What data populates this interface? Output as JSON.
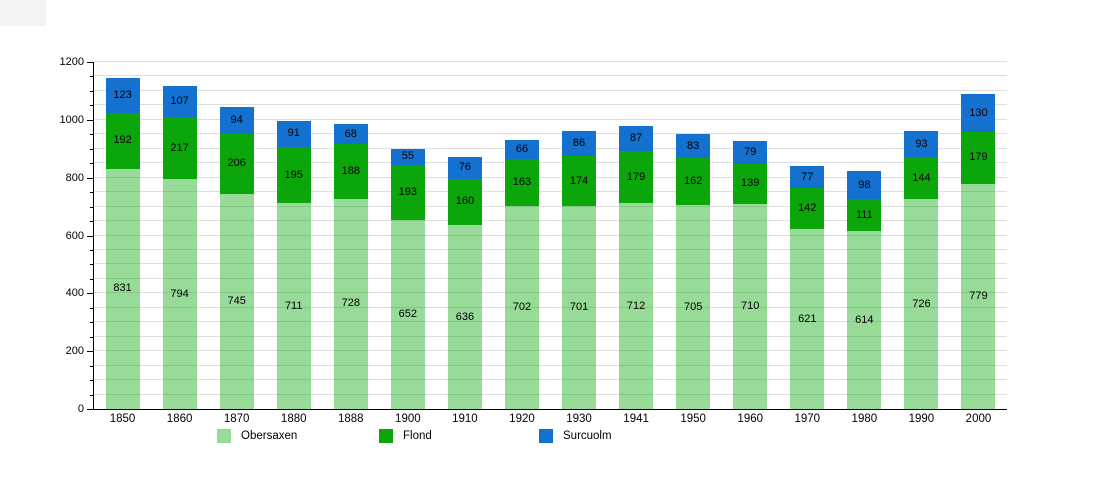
{
  "chart_data": {
    "type": "bar",
    "stacked": true,
    "title": "",
    "xlabel": "",
    "ylabel": "",
    "ylim": [
      0,
      1200
    ],
    "yticks": [
      0,
      200,
      400,
      600,
      800,
      1000,
      1200
    ],
    "grid_step": 50,
    "grid_on": true,
    "legend_position": "bottom",
    "axis_color": "#000000",
    "grid_color": "#dedede",
    "categories": [
      "1850",
      "1860",
      "1870",
      "1880",
      "1888",
      "1900",
      "1910",
      "1920",
      "1930",
      "1941",
      "1950",
      "1960",
      "1970",
      "1980",
      "1990",
      "2000"
    ],
    "series": [
      {
        "name": "Obersaxen",
        "color": "#98DA98",
        "fill": "rgba(10,166,10,0.42)",
        "values": [
          831,
          794,
          745,
          711,
          728,
          652,
          636,
          702,
          701,
          712,
          705,
          710,
          621,
          614,
          726,
          779
        ]
      },
      {
        "name": "Flond",
        "color": "#0AA60A",
        "fill": "#0AA60A",
        "values": [
          192,
          217,
          206,
          195,
          188,
          193,
          160,
          163,
          174,
          179,
          162,
          139,
          142,
          111,
          144,
          179
        ]
      },
      {
        "name": "Surcuolm",
        "color": "#1571D0",
        "fill": "#1571D0",
        "values": [
          123,
          107,
          94,
          91,
          68,
          55,
          76,
          66,
          86,
          87,
          83,
          79,
          77,
          98,
          93,
          130
        ]
      }
    ]
  }
}
